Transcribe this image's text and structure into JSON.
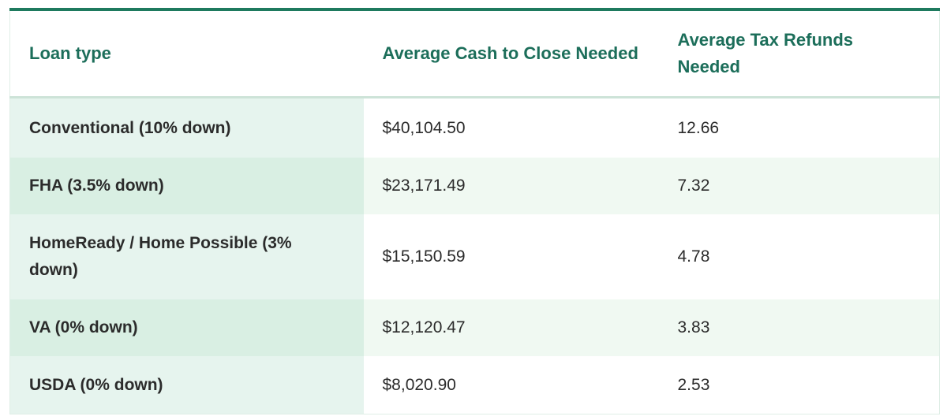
{
  "table": {
    "header": [
      "Loan type",
      "Average Cash to Close Needed",
      "Average Tax Refunds Needed"
    ],
    "rows": [
      [
        "Conventional (10% down)",
        "$40,104.50",
        "12.66"
      ],
      [
        "FHA (3.5% down)",
        "$23,171.49",
        "7.32"
      ],
      [
        "HomeReady / Home Possible (3% down)",
        "$15,150.59",
        "4.78"
      ],
      [
        "VA (0% down)",
        "$12,120.47",
        "3.83"
      ],
      [
        "USDA (0% down)",
        "$8,020.90",
        "2.53"
      ]
    ]
  }
}
